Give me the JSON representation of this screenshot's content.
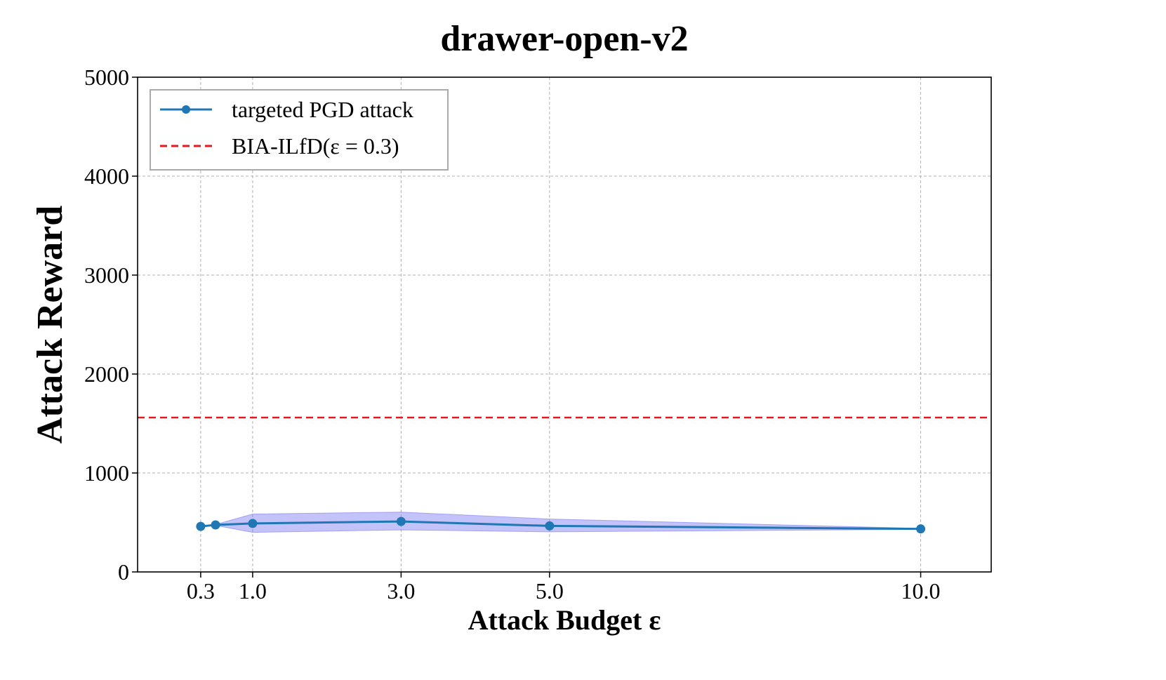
{
  "chart_data": {
    "type": "line",
    "title": "drawer-open-v2",
    "xlabel": "Attack Budget ε",
    "ylabel": "Attack Reward",
    "xlim": [
      -0.55,
      10.95
    ],
    "ylim": [
      0,
      5000
    ],
    "xticks": [
      0.3,
      1.0,
      3.0,
      5.0,
      10.0
    ],
    "xtick_labels": [
      "0.3",
      "1.0",
      "3.0",
      "5.0",
      "10.0"
    ],
    "yticks": [
      0,
      1000,
      2000,
      3000,
      4000,
      5000
    ],
    "ytick_labels": [
      "0",
      "1000",
      "2000",
      "3000",
      "4000",
      "5000"
    ],
    "grid": true,
    "legend_position": "top-left",
    "series": [
      {
        "name": "targeted PGD attack",
        "kind": "line-marker",
        "color": "#1f77b4",
        "band_color": "#7b7bf5",
        "x": [
          0.3,
          0.5,
          1.0,
          3.0,
          5.0,
          10.0
        ],
        "y": [
          460,
          475,
          490,
          510,
          465,
          435
        ],
        "lower": [
          455,
          470,
          400,
          425,
          405,
          430
        ],
        "upper": [
          465,
          480,
          585,
          605,
          535,
          440
        ]
      },
      {
        "name": "BIA-ILfD(ε = 0.3)",
        "kind": "hline-dashed",
        "color": "#e41a1c",
        "y": 1560
      }
    ]
  }
}
